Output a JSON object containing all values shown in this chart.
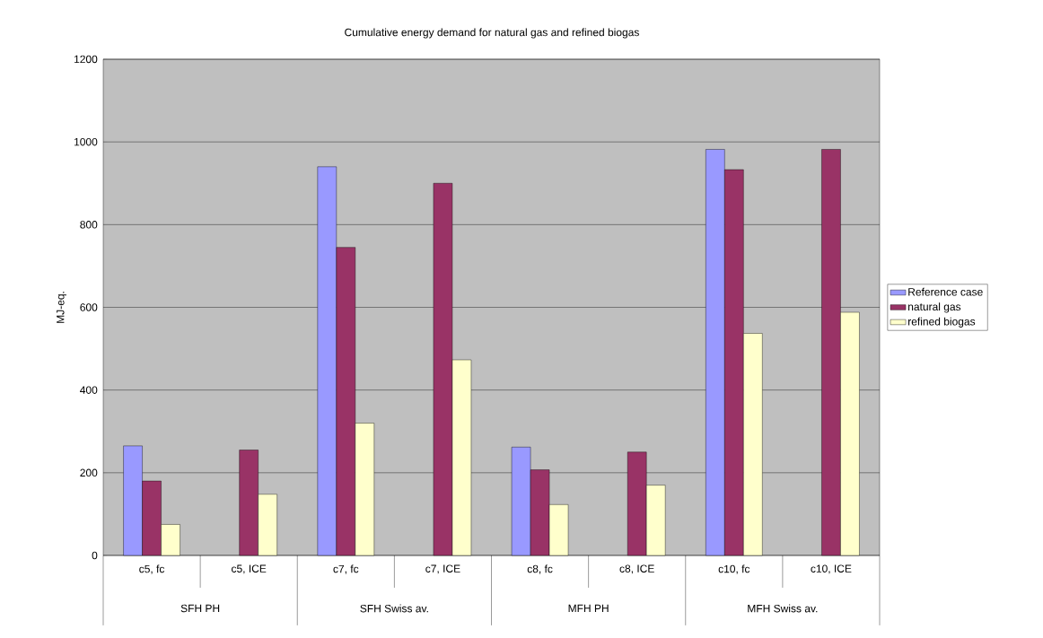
{
  "chart_data": {
    "type": "bar",
    "title": "Cumulative energy demand for natural gas and refined biogas",
    "ylabel": "MJ-eq.",
    "categories": [
      "c5, fc",
      "c5, ICE",
      "c7, fc",
      "c7, ICE",
      "c8, fc",
      "c8, ICE",
      "c10, fc",
      "c10, ICE"
    ],
    "annotations": [
      "SFH PH",
      "SFH Swiss av.",
      "MFH PH",
      "MFH Swiss av."
    ],
    "series": [
      {
        "name": "Reference case",
        "color": "#9999ff",
        "values": [
          265,
          null,
          940,
          null,
          262,
          null,
          982,
          null
        ]
      },
      {
        "name": "natural gas",
        "color": "#993366",
        "values": [
          180,
          255,
          745,
          900,
          207,
          250,
          933,
          982
        ]
      },
      {
        "name": "refined biogas",
        "color": "#ffffcc",
        "values": [
          75,
          148,
          320,
          473,
          123,
          170,
          537,
          588
        ]
      }
    ],
    "ylim": [
      0,
      1200
    ],
    "yticks": [
      0,
      200,
      400,
      600,
      800,
      1000,
      1200
    ],
    "grid": "y",
    "legend": "right"
  }
}
